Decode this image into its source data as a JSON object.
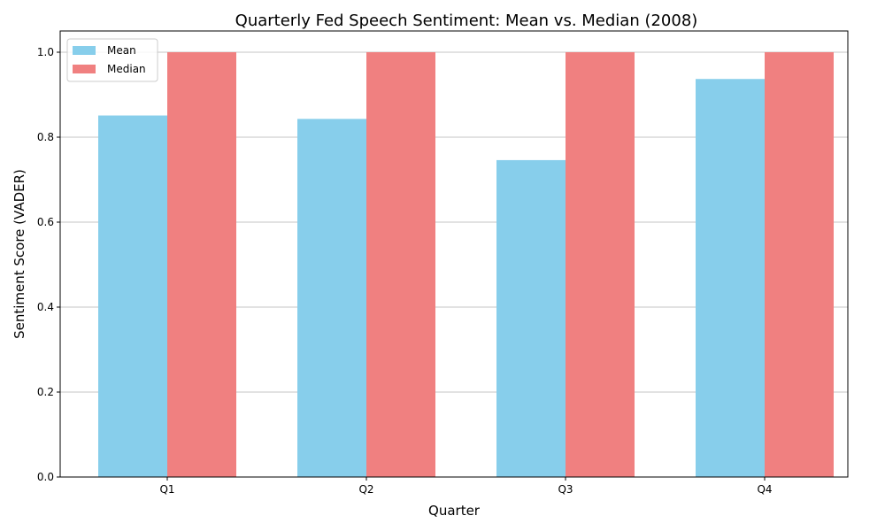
{
  "chart_data": {
    "type": "bar",
    "title": "Quarterly Fed Speech Sentiment: Mean vs. Median (2008)",
    "xlabel": "Quarter",
    "ylabel": "Sentiment Score (VADER)",
    "categories": [
      "Q1",
      "Q2",
      "Q3",
      "Q4"
    ],
    "series": [
      {
        "name": "Mean",
        "values": [
          0.851,
          0.843,
          0.746,
          0.937
        ],
        "color": "#87ceeb"
      },
      {
        "name": "Median",
        "values": [
          1.0,
          1.0,
          1.0,
          1.0
        ],
        "color": "#f08080"
      }
    ],
    "ylim": [
      0,
      1.05
    ],
    "yticks": [
      0.0,
      0.2,
      0.4,
      0.6,
      0.8,
      1.0
    ],
    "ytick_labels": [
      "0.0",
      "0.2",
      "0.4",
      "0.6",
      "0.8",
      "1.0"
    ],
    "grid": "horizontal",
    "legend_position": "top-left"
  }
}
